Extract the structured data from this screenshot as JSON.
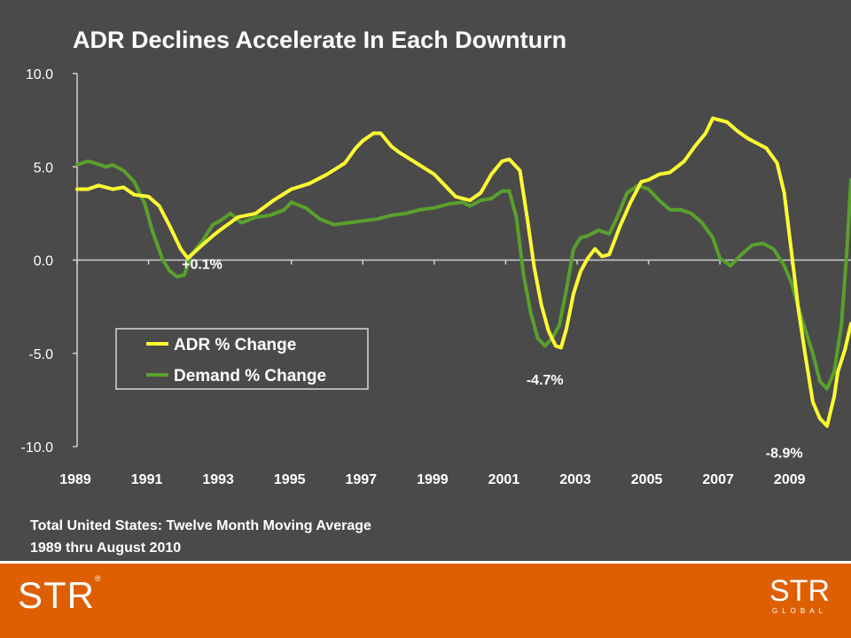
{
  "slide": {
    "footnote_line1": "Total United States: Twelve Month Moving Average",
    "footnote_line2": "1989 thru August 2010",
    "logo_left": "STR",
    "logo_right_main": "STR",
    "logo_right_sub": "GLOBAL",
    "colors": {
      "background": "#4a4a4a",
      "footer": "#dd5f00",
      "adr": "#ffff33",
      "demand": "#5aa02c"
    }
  },
  "chart_data": {
    "type": "line",
    "title": "ADR Declines Accelerate In Each Downturn",
    "xlim": [
      1989,
      2010.67
    ],
    "ylim": [
      -10,
      10
    ],
    "x_ticks": [
      1989,
      1991,
      1993,
      1995,
      1997,
      1999,
      2001,
      2003,
      2005,
      2007,
      2009
    ],
    "x_tick_labels": [
      "1989",
      "1991",
      "1993",
      "1995",
      "1997",
      "1999",
      "2001",
      "2003",
      "2005",
      "2007",
      "2009"
    ],
    "y_ticks": [
      10,
      5,
      0,
      -5,
      -10
    ],
    "y_tick_labels": [
      "10.0",
      "5.0",
      "0.0",
      "-5.0",
      "-10.0"
    ],
    "grid": false,
    "legend_position": "lower-left",
    "series": [
      {
        "name": "ADR % Change",
        "color": "#ffff33",
        "x": [
          1989.0,
          1989.3,
          1989.6,
          1990.0,
          1990.3,
          1990.6,
          1991.0,
          1991.3,
          1991.6,
          1991.9,
          1992.1,
          1992.5,
          1992.8,
          1993.0,
          1993.5,
          1994.0,
          1994.5,
          1995.0,
          1995.5,
          1996.0,
          1996.5,
          1996.8,
          1997.0,
          1997.3,
          1997.5,
          1997.8,
          1998.0,
          1998.5,
          1999.0,
          1999.3,
          1999.6,
          2000.0,
          2000.3,
          2000.6,
          2000.9,
          2001.1,
          2001.4,
          2001.6,
          2001.8,
          2002.0,
          2002.2,
          2002.4,
          2002.55,
          2002.7,
          2002.9,
          2003.1,
          2003.3,
          2003.5,
          2003.7,
          2003.9,
          2004.2,
          2004.5,
          2004.8,
          2005.0,
          2005.3,
          2005.6,
          2006.0,
          2006.3,
          2006.6,
          2006.8,
          2007.0,
          2007.2,
          2007.5,
          2007.8,
          2008.0,
          2008.3,
          2008.6,
          2008.8,
          2009.0,
          2009.2,
          2009.4,
          2009.6,
          2009.8,
          2010.0,
          2010.2,
          2010.3,
          2010.5,
          2010.67
        ],
        "values": [
          3.8,
          3.8,
          4.0,
          3.8,
          3.9,
          3.5,
          3.4,
          2.9,
          1.8,
          0.6,
          0.1,
          0.8,
          1.3,
          1.6,
          2.3,
          2.5,
          3.2,
          3.8,
          4.1,
          4.6,
          5.2,
          6.0,
          6.4,
          6.8,
          6.8,
          6.1,
          5.8,
          5.2,
          4.6,
          4.0,
          3.4,
          3.2,
          3.6,
          4.6,
          5.3,
          5.4,
          4.8,
          2.3,
          -0.4,
          -2.4,
          -3.8,
          -4.6,
          -4.7,
          -3.7,
          -1.8,
          -0.6,
          0.1,
          0.6,
          0.2,
          0.3,
          1.8,
          3.1,
          4.2,
          4.3,
          4.6,
          4.7,
          5.3,
          6.1,
          6.8,
          7.6,
          7.5,
          7.4,
          6.9,
          6.5,
          6.3,
          6.0,
          5.2,
          3.6,
          0.5,
          -2.7,
          -5.2,
          -7.6,
          -8.5,
          -8.9,
          -7.3,
          -6.0,
          -4.8,
          -3.4
        ]
      },
      {
        "name": "Demand % Change",
        "color": "#5aa02c",
        "x": [
          1989.0,
          1989.3,
          1989.5,
          1989.8,
          1990.0,
          1990.3,
          1990.6,
          1990.9,
          1991.1,
          1991.4,
          1991.6,
          1991.8,
          1992.0,
          1992.2,
          1992.5,
          1992.8,
          1993.0,
          1993.3,
          1993.6,
          1994.0,
          1994.4,
          1994.8,
          1995.0,
          1995.4,
          1995.8,
          1996.2,
          1996.6,
          1997.0,
          1997.4,
          1997.8,
          1998.2,
          1998.6,
          1999.0,
          1999.4,
          1999.8,
          2000.0,
          2000.3,
          2000.6,
          2000.9,
          2001.1,
          2001.3,
          2001.5,
          2001.7,
          2001.9,
          2002.1,
          2002.3,
          2002.5,
          2002.7,
          2002.9,
          2003.1,
          2003.3,
          2003.6,
          2003.9,
          2004.1,
          2004.4,
          2004.7,
          2005.0,
          2005.3,
          2005.6,
          2005.9,
          2006.2,
          2006.5,
          2006.8,
          2007.0,
          2007.3,
          2007.6,
          2007.9,
          2008.2,
          2008.5,
          2008.8,
          2009.0,
          2009.3,
          2009.6,
          2009.8,
          2010.0,
          2010.2,
          2010.4,
          2010.55,
          2010.67
        ],
        "values": [
          5.1,
          5.3,
          5.2,
          5.0,
          5.1,
          4.8,
          4.2,
          3.0,
          1.6,
          0.0,
          -0.6,
          -0.9,
          -0.8,
          0.3,
          1.0,
          1.9,
          2.1,
          2.5,
          2.0,
          2.3,
          2.4,
          2.7,
          3.1,
          2.8,
          2.2,
          1.9,
          2.0,
          2.1,
          2.2,
          2.4,
          2.5,
          2.7,
          2.8,
          3.0,
          3.1,
          2.9,
          3.2,
          3.3,
          3.7,
          3.7,
          2.3,
          -0.8,
          -2.8,
          -4.2,
          -4.6,
          -4.2,
          -3.5,
          -1.6,
          0.6,
          1.2,
          1.3,
          1.6,
          1.4,
          2.2,
          3.6,
          4.0,
          3.8,
          3.2,
          2.7,
          2.7,
          2.5,
          2.0,
          1.2,
          0.1,
          -0.3,
          0.3,
          0.8,
          0.9,
          0.6,
          -0.3,
          -1.2,
          -3.2,
          -5.0,
          -6.5,
          -6.9,
          -6.0,
          -3.5,
          0.4,
          4.3
        ]
      }
    ],
    "annotations": [
      {
        "text": "+0.1%",
        "x": 1992.5,
        "y": -0.2
      },
      {
        "text": "-4.7%",
        "x": 2002.1,
        "y": -6.4
      },
      {
        "text": "-8.9%",
        "x": 2008.8,
        "y": -10.3
      }
    ]
  }
}
